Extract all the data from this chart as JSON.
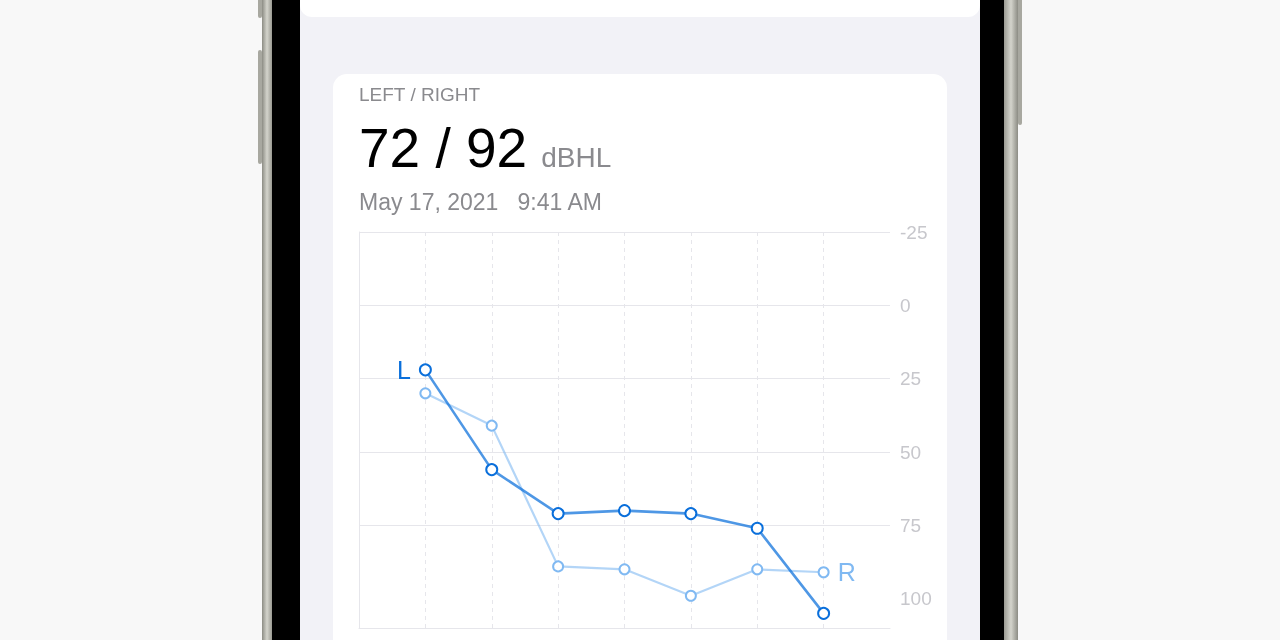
{
  "chart_data": {
    "type": "line",
    "title": "LEFT / RIGHT",
    "subtitle": "May 17, 2021   9:41 AM",
    "annotations": [
      "72 / 92",
      "dBHL"
    ],
    "categories": [
      null,
      null,
      null,
      null,
      null,
      null,
      null
    ],
    "series": [
      {
        "name": "L",
        "color": "#0a6fdb",
        "values": [
          22,
          56,
          71,
          70,
          71,
          76,
          105
        ]
      },
      {
        "name": "R",
        "color": "#80b9f2",
        "values": [
          30,
          41,
          89,
          90,
          99,
          90,
          91
        ]
      }
    ],
    "ylim": [
      110,
      -25
    ],
    "yticks": [
      -25,
      0,
      25,
      50,
      75,
      100
    ],
    "grid": true,
    "tick_labels": "y",
    "marker": "circle",
    "line_style": "solid"
  }
}
